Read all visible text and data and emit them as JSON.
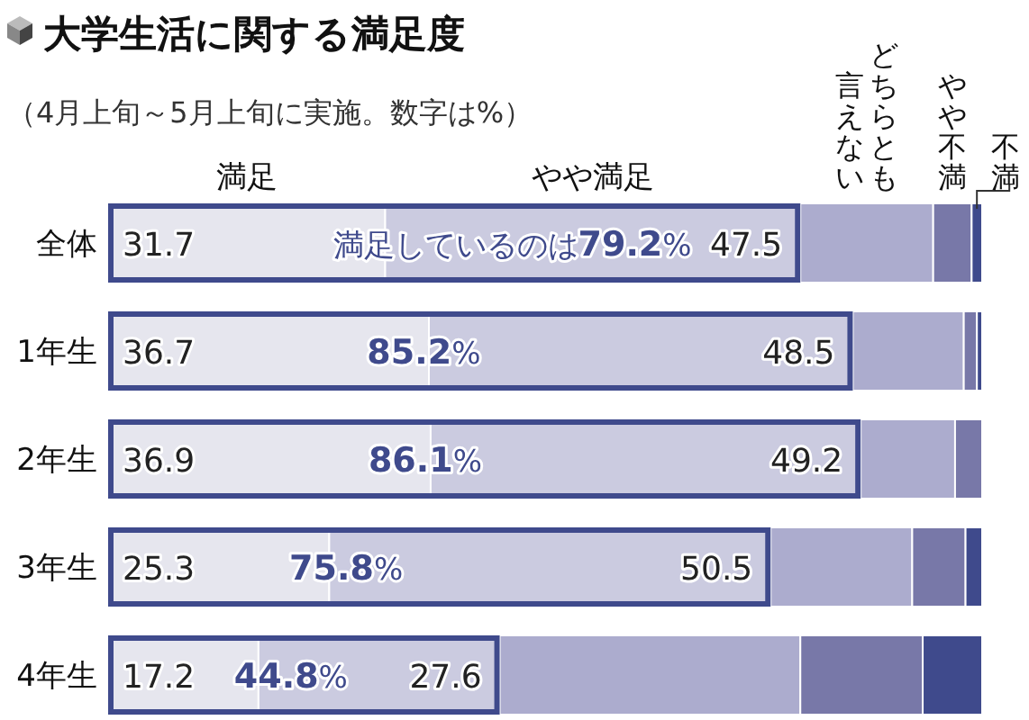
{
  "chart_data": {
    "type": "bar",
    "orientation": "horizontal",
    "stacked": true,
    "title": "大学生活に関する満足度",
    "subtitle": "（4月上旬～5月上旬に実施。数字は%）",
    "categories": [
      "全体",
      "1年生",
      "2年生",
      "3年生",
      "4年生"
    ],
    "xlim": [
      0,
      100
    ],
    "tick_labels": "y",
    "series": [
      {
        "name": "満足",
        "color": "#e6e6ee",
        "values": [
          31.7,
          36.7,
          36.9,
          25.3,
          17.2
        ],
        "value_labels": [
          "31.7",
          "36.7",
          "36.9",
          "25.3",
          "17.2"
        ]
      },
      {
        "name": "やや満足",
        "color": "#cbcbe0",
        "values": [
          47.5,
          48.5,
          49.2,
          50.5,
          27.6
        ],
        "value_labels": [
          "47.5",
          "48.5",
          "49.2",
          "50.5",
          "27.6"
        ]
      },
      {
        "name": "どちらとも言えない",
        "color": "#acacce",
        "values": [
          15.2,
          12.7,
          10.8,
          16.2,
          34.4
        ]
      },
      {
        "name": "やや不満",
        "color": "#7878a8",
        "values": [
          4.4,
          1.5,
          3.1,
          6.1,
          14.0
        ]
      },
      {
        "name": "不満",
        "color": "#3f4a8c",
        "values": [
          1.2,
          0.6,
          0,
          1.9,
          6.8
        ]
      }
    ],
    "annotations": [
      "満足しているのは79.2%",
      "85.2%",
      "86.1%",
      "75.8%",
      "44.8%"
    ]
  }
}
